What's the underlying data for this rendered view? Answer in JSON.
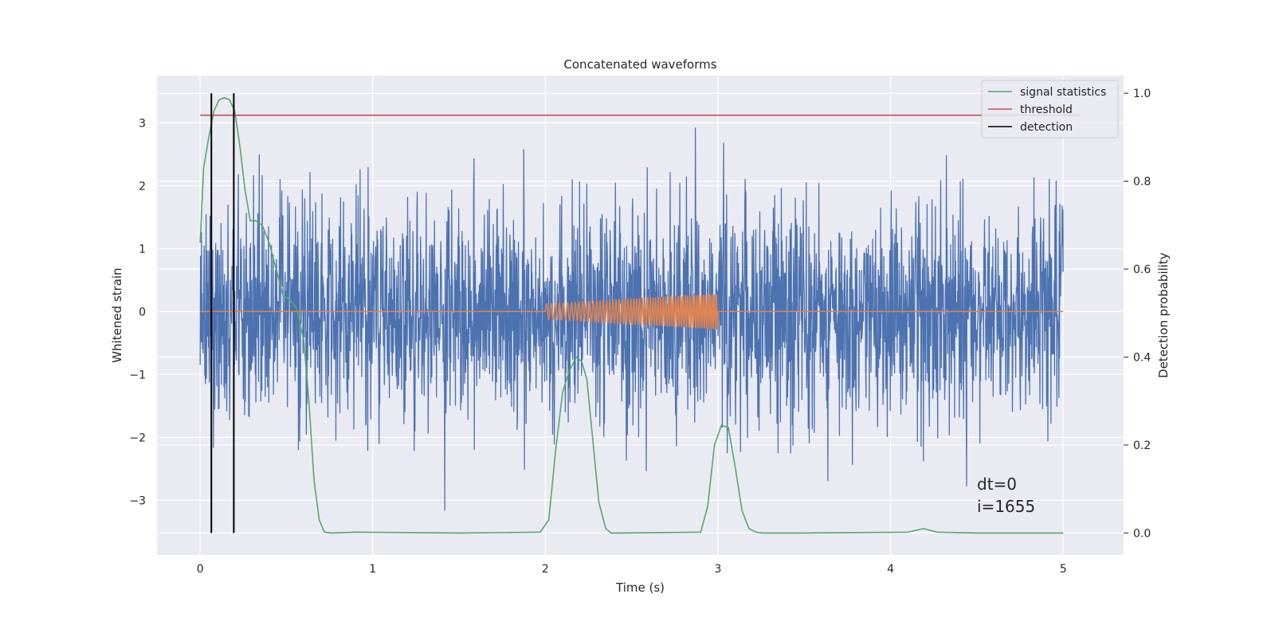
{
  "chart_data": {
    "type": "line",
    "title": "Concatenated waveforms",
    "xlabel": "Time (s)",
    "ylabel": "Whitened strain",
    "ylabel_right": "Detection probability",
    "xlim": [
      -0.25,
      5.35
    ],
    "ylim": [
      -3.87,
      3.75
    ],
    "ylim_right": [
      -0.05,
      1.04
    ],
    "xticks": [
      "0",
      "1",
      "2",
      "3",
      "4",
      "5"
    ],
    "yticks": [
      "3",
      "2",
      "1",
      "0",
      "−1",
      "−2",
      "−3"
    ],
    "yticks_right": [
      "1.0",
      "0.8",
      "0.6",
      "0.4",
      "0.2",
      "0.0"
    ],
    "grid": true,
    "legend_position": "top-right",
    "legend": [
      {
        "name": "signal statistics",
        "color": "#55a868"
      },
      {
        "name": "threshold",
        "color": "#c44e52"
      },
      {
        "name": "detection",
        "color": "#000000"
      }
    ],
    "strain": {
      "color": "#4c72b0",
      "x_range": [
        0,
        5
      ],
      "typical_envelope": [
        -2.0,
        2.0
      ],
      "peak_max": 3.4,
      "peak_min": -3.6
    },
    "injected_waveform": {
      "color": "#dd8452",
      "baseline": 0,
      "chirp_x_range": [
        2.0,
        3.0
      ],
      "amplitude_start": 0.12,
      "amplitude_end": 0.28
    },
    "series": [
      {
        "name": "signal statistics",
        "axis": "right",
        "x": [
          0.0,
          0.02,
          0.05,
          0.08,
          0.11,
          0.14,
          0.17,
          0.2,
          0.23,
          0.26,
          0.29,
          0.32,
          0.36,
          0.4,
          0.44,
          0.48,
          0.52,
          0.56,
          0.6,
          0.63,
          0.66,
          0.69,
          0.72,
          0.76,
          0.9,
          1.5,
          1.97,
          2.02,
          2.06,
          2.1,
          2.14,
          2.18,
          2.21,
          2.24,
          2.27,
          2.31,
          2.35,
          2.38,
          2.42,
          2.9,
          2.94,
          2.98,
          3.02,
          3.06,
          3.1,
          3.14,
          3.18,
          3.22,
          3.26,
          3.3,
          3.5,
          4.1,
          4.19,
          4.27,
          4.5,
          5.0
        ],
        "values": [
          0.66,
          0.83,
          0.9,
          0.96,
          0.985,
          0.99,
          0.985,
          0.96,
          0.88,
          0.78,
          0.71,
          0.71,
          0.7,
          0.66,
          0.6,
          0.54,
          0.53,
          0.51,
          0.44,
          0.3,
          0.12,
          0.03,
          0.002,
          0.0,
          0.002,
          0.0,
          0.002,
          0.03,
          0.19,
          0.32,
          0.37,
          0.4,
          0.39,
          0.35,
          0.23,
          0.07,
          0.01,
          0.0,
          0.0,
          0.002,
          0.06,
          0.2,
          0.245,
          0.24,
          0.15,
          0.05,
          0.01,
          0.002,
          0.0,
          0.0,
          0.0,
          0.002,
          0.01,
          0.002,
          0.0,
          0.0
        ]
      },
      {
        "name": "threshold",
        "axis": "right",
        "x": [
          0,
          5.1
        ],
        "values": [
          0.95,
          0.95
        ]
      }
    ],
    "detections": [
      0.065,
      0.195
    ],
    "annotations": [
      "dt=0",
      "i=1655"
    ]
  }
}
